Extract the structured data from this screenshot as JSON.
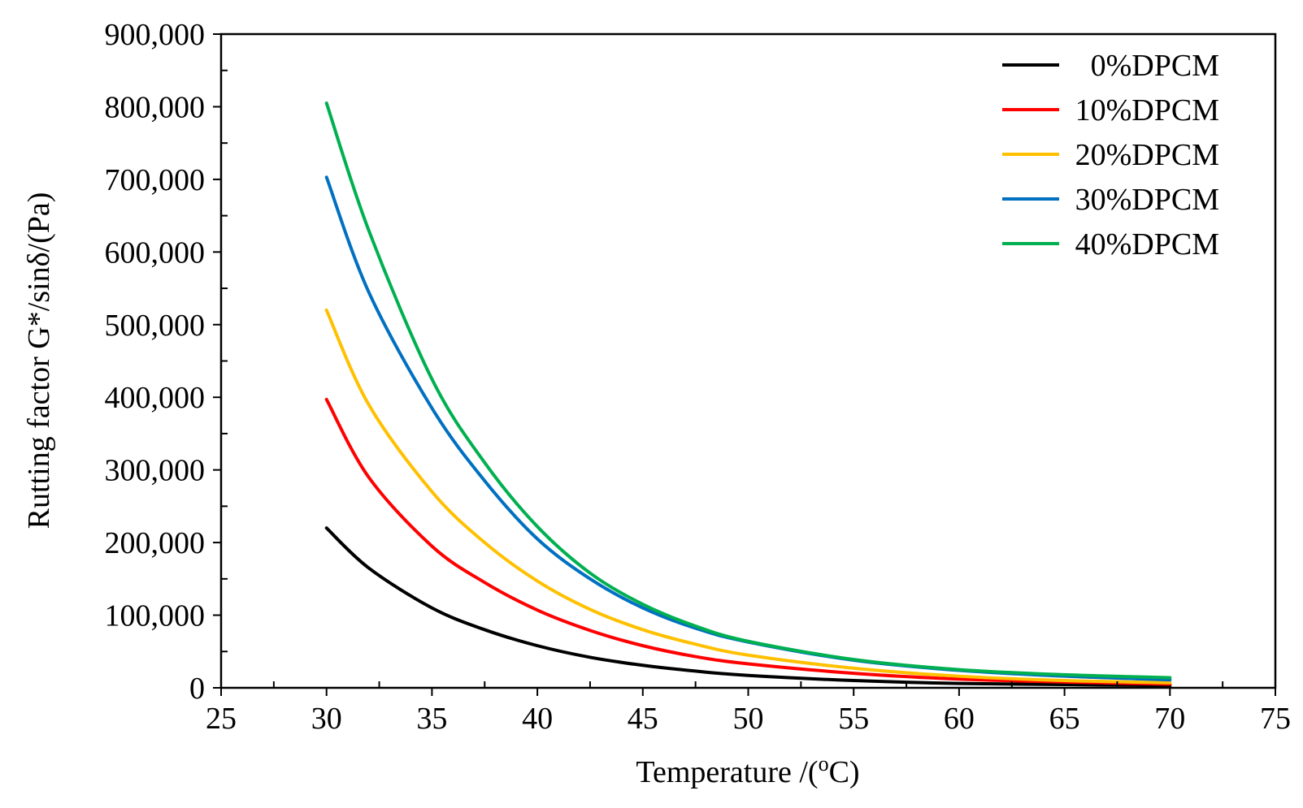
{
  "chart_data": {
    "type": "line",
    "title": "",
    "xlabel": "Temperature /(",
    "xlabel_sup": "o",
    "xlabel_tail": "C)",
    "ylabel": "Rutting factor G*/sinδ/(Pa)",
    "xlim": [
      25,
      75
    ],
    "ylim": [
      0,
      900000
    ],
    "x_ticks": [
      25,
      30,
      35,
      40,
      45,
      50,
      55,
      60,
      65,
      70,
      75
    ],
    "x_tick_labels": [
      "25",
      "30",
      "35",
      "40",
      "45",
      "50",
      "55",
      "60",
      "65",
      "70",
      "75"
    ],
    "y_ticks": [
      0,
      100000,
      200000,
      300000,
      400000,
      500000,
      600000,
      700000,
      800000,
      900000
    ],
    "y_tick_labels": [
      "0",
      "100,000",
      "200,000",
      "300,000",
      "400,000",
      "500,000",
      "600,000",
      "700,000",
      "800,000",
      "900,000"
    ],
    "grid": false,
    "legend_position": "top-right",
    "x": [
      30,
      32,
      35,
      37.5,
      40,
      42.5,
      45,
      47.5,
      50,
      55,
      60,
      65,
      70
    ],
    "series": [
      {
        "name": "0%DPCM",
        "color": "#000000",
        "values": [
          220000,
          165000,
          110000,
          80000,
          58000,
          42000,
          31000,
          23000,
          17000,
          10000,
          6000,
          4500,
          3000
        ]
      },
      {
        "name": "10%DPCM",
        "color": "#ff0000",
        "values": [
          397000,
          290000,
          195000,
          145000,
          107000,
          79000,
          58000,
          43000,
          33000,
          20000,
          12000,
          8000,
          5000
        ]
      },
      {
        "name": "20%DPCM",
        "color": "#ffc000",
        "values": [
          520000,
          390000,
          270000,
          200000,
          147000,
          108000,
          80000,
          60000,
          45000,
          27000,
          16000,
          10000,
          7000
        ]
      },
      {
        "name": "30%DPCM",
        "color": "#0070c0",
        "values": [
          703000,
          545000,
          385000,
          285000,
          205000,
          150000,
          110000,
          82000,
          63000,
          38000,
          24000,
          16000,
          11000
        ]
      },
      {
        "name": "40%DPCM",
        "color": "#00b050",
        "values": [
          805000,
          630000,
          425000,
          310000,
          222000,
          158000,
          115000,
          85000,
          64000,
          39000,
          25000,
          18000,
          14000
        ]
      }
    ]
  }
}
